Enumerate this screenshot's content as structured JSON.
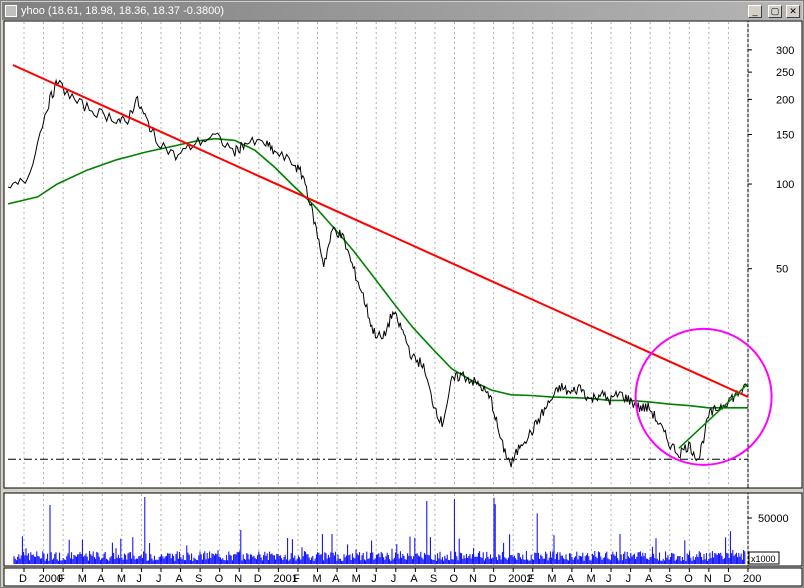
{
  "window": {
    "title": "yhoo (18.61, 18.98, 18.36, 18.37 -0.3800)",
    "buttons": [
      "_",
      "▢",
      "✕"
    ]
  },
  "chart_data": [
    {
      "type": "line",
      "title": "yhoo (18.61, 18.98, 18.36, 18.37 -0.3800)",
      "scale": "log",
      "ylim": [
        8.3,
        380
      ],
      "y_ticks": [
        300,
        250,
        200,
        150,
        100,
        50
      ],
      "x_ticks": [
        "D",
        "2000",
        "F",
        "M",
        "A",
        "M",
        "J",
        "J",
        "A",
        "S",
        "O",
        "N",
        "D",
        "2001",
        "F",
        "M",
        "A",
        "M",
        "J",
        "J",
        "A",
        "S",
        "O",
        "N",
        "D",
        "2002",
        "F",
        "M",
        "A",
        "M",
        "J",
        "J",
        "A",
        "S",
        "O",
        "N",
        "D",
        "200"
      ],
      "series": [
        {
          "key": "price",
          "color": "#000000",
          "points": [
            [
              0,
              95
            ],
            [
              2,
              105
            ],
            [
              4,
              190
            ],
            [
              5,
              230
            ],
            [
              7,
              195
            ],
            [
              9,
              180
            ],
            [
              11,
              170
            ],
            [
              12,
              165
            ],
            [
              13,
              200
            ],
            [
              14,
              170
            ],
            [
              15,
              145
            ],
            [
              17,
              125
            ],
            [
              19,
              140
            ],
            [
              21,
              148
            ],
            [
              23,
              130
            ],
            [
              24,
              140
            ],
            [
              26,
              140
            ],
            [
              27,
              130
            ],
            [
              29,
              118
            ],
            [
              30,
              105
            ],
            [
              31,
              75
            ],
            [
              32,
              52
            ],
            [
              33,
              70
            ],
            [
              34,
              64
            ],
            [
              35,
              50
            ],
            [
              36,
              40
            ],
            [
              37,
              30
            ],
            [
              38,
              28
            ],
            [
              39,
              35
            ],
            [
              40,
              30
            ],
            [
              41,
              24
            ],
            [
              42,
              23
            ],
            [
              43,
              17
            ],
            [
              44,
              14
            ],
            [
              45,
              20
            ],
            [
              46,
              21
            ],
            [
              47,
              20
            ],
            [
              48,
              19
            ],
            [
              49,
              17
            ],
            [
              50,
              12
            ],
            [
              51,
              10
            ],
            [
              52,
              12
            ],
            [
              53,
              13
            ],
            [
              54,
              15
            ],
            [
              55,
              17
            ],
            [
              56,
              19
            ],
            [
              57,
              18
            ],
            [
              58,
              19
            ],
            [
              59,
              17
            ],
            [
              60,
              18
            ],
            [
              61,
              17
            ],
            [
              62,
              18
            ],
            [
              63,
              17
            ],
            [
              64,
              16
            ],
            [
              65,
              16
            ],
            [
              66,
              14
            ],
            [
              67,
              12
            ],
            [
              68,
              11
            ],
            [
              69,
              11.8
            ],
            [
              70,
              10.5
            ],
            [
              71,
              15
            ],
            [
              72,
              16
            ],
            [
              73,
              17
            ],
            [
              74,
              18
            ],
            [
              75,
              19
            ]
          ]
        },
        {
          "key": "moving-average",
          "color": "#008000",
          "points": [
            [
              0,
              85
            ],
            [
              3,
              90
            ],
            [
              5,
              100
            ],
            [
              8,
              112
            ],
            [
              11,
              122
            ],
            [
              14,
              130
            ],
            [
              17,
              137
            ],
            [
              19,
              142
            ],
            [
              21,
              145
            ],
            [
              23,
              143
            ],
            [
              25,
              132
            ],
            [
              27,
              115
            ],
            [
              29,
              98
            ],
            [
              31,
              84
            ],
            [
              33,
              70
            ],
            [
              35,
              58
            ],
            [
              37,
              47
            ],
            [
              39,
              38
            ],
            [
              41,
              31
            ],
            [
              43,
              26
            ],
            [
              45,
              22
            ],
            [
              47,
              20
            ],
            [
              49,
              18.5
            ],
            [
              51,
              17.8
            ],
            [
              53,
              17.7
            ],
            [
              55,
              17.5
            ],
            [
              57,
              17.4
            ],
            [
              59,
              17.3
            ],
            [
              61,
              17.0
            ],
            [
              63,
              17.0
            ],
            [
              65,
              16.8
            ],
            [
              67,
              16.5
            ],
            [
              69,
              16.3
            ],
            [
              71,
              16.0
            ],
            [
              73,
              16.0
            ],
            [
              75,
              16.0
            ]
          ]
        },
        {
          "key": "downtrend-line",
          "color": "#ff0000",
          "points": [
            [
              0.5,
              265
            ],
            [
              75,
              17.5
            ]
          ]
        },
        {
          "key": "uptrend-line",
          "color": "#008000",
          "points": [
            [
              68,
              11.5
            ],
            [
              75,
              19.5
            ]
          ]
        },
        {
          "key": "support-level",
          "color": "#000000",
          "points": [
            [
              0,
              10.5
            ],
            [
              75,
              10.5
            ]
          ]
        }
      ],
      "annotations": [
        {
          "key": "highlight-circle",
          "color": "#ff00ff",
          "center": [
            70.5,
            17.5
          ]
        }
      ]
    },
    {
      "type": "bar",
      "y_ticks": [
        50000
      ],
      "multiplier_label": "x1000",
      "color": "#0000ff"
    }
  ]
}
